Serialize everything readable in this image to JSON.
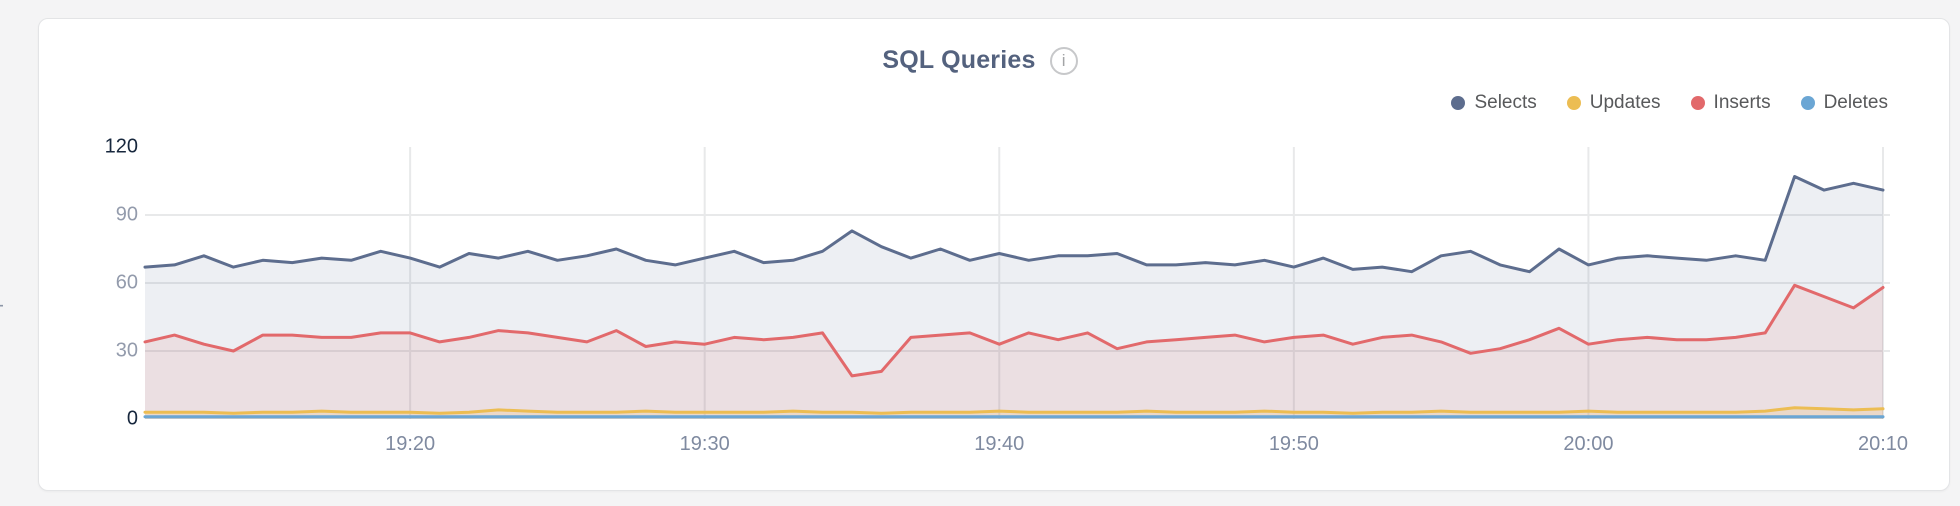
{
  "page": {
    "background": "#f4f4f5"
  },
  "header": {
    "title": "SQL Queries",
    "info_icon_glyph": "i"
  },
  "colors": {
    "card_border": "#e3e4e6",
    "grid": "#e8e9ea",
    "title": "#54627e",
    "legend_text": "#58595b",
    "ytick_strong": "#17273d",
    "ytick_weak": "#939bac",
    "xtick": "#7f8aa0"
  },
  "chart_data": {
    "type": "area",
    "title": "SQL Queries",
    "ylabel": "queries",
    "ylim": [
      0,
      120
    ],
    "grid": true,
    "legend_position": "top-right",
    "yticks": [
      {
        "value": 120,
        "label": "120",
        "strong": true,
        "gridline": false
      },
      {
        "value": 90,
        "label": "90",
        "strong": false,
        "gridline": true
      },
      {
        "value": 60,
        "label": "60",
        "strong": false,
        "gridline": true
      },
      {
        "value": 30,
        "label": "30",
        "strong": false,
        "gridline": true
      },
      {
        "value": 0,
        "label": "0",
        "strong": true,
        "gridline": false
      }
    ],
    "x_minutes_span": 59,
    "xticks": [
      {
        "label": "19:20",
        "minute": 9
      },
      {
        "label": "19:30",
        "minute": 19
      },
      {
        "label": "19:40",
        "minute": 29
      },
      {
        "label": "19:50",
        "minute": 39
      },
      {
        "label": "20:00",
        "minute": 49
      },
      {
        "label": "20:10",
        "minute": 59
      }
    ],
    "series": [
      {
        "name": "Selects",
        "color": "#5d6d8e",
        "fill": "rgba(93,109,142,0.11)",
        "values": [
          67,
          68,
          72,
          67,
          70,
          69,
          71,
          70,
          74,
          71,
          67,
          73,
          71,
          74,
          70,
          72,
          75,
          70,
          68,
          71,
          74,
          69,
          70,
          74,
          83,
          76,
          71,
          75,
          70,
          73,
          70,
          72,
          72,
          73,
          68,
          68,
          69,
          68,
          70,
          67,
          71,
          66,
          67,
          65,
          72,
          74,
          68,
          65,
          75,
          68,
          71,
          72,
          71,
          70,
          72,
          70,
          107,
          101,
          104,
          101
        ]
      },
      {
        "name": "Inserts",
        "color": "#e2696b",
        "fill": "rgba(226,105,107,0.12)",
        "values": [
          34,
          37,
          33,
          30,
          37,
          37,
          36,
          36,
          38,
          38,
          34,
          36,
          39,
          38,
          36,
          34,
          39,
          32,
          34,
          33,
          36,
          35,
          36,
          38,
          19,
          21,
          36,
          37,
          38,
          33,
          38,
          35,
          38,
          31,
          34,
          35,
          36,
          37,
          34,
          36,
          37,
          33,
          36,
          37,
          34,
          29,
          31,
          35,
          40,
          33,
          35,
          36,
          35,
          35,
          36,
          38,
          59,
          54,
          49,
          58
        ]
      },
      {
        "name": "Updates",
        "color": "#ecbd53",
        "fill": "rgba(236,189,83,0.18)",
        "values": [
          3,
          3,
          3,
          2.5,
          3,
          3,
          3.5,
          3,
          3,
          3,
          2.5,
          3,
          4,
          3.5,
          3,
          3,
          3,
          3.5,
          3,
          3,
          3,
          3,
          3.5,
          3,
          3,
          2.5,
          3,
          3,
          3,
          3.5,
          3,
          3,
          3,
          3,
          3.5,
          3,
          3,
          3,
          3.5,
          3,
          3,
          2.5,
          3,
          3,
          3.5,
          3,
          3,
          3,
          3,
          3.5,
          3,
          3,
          3,
          3,
          3,
          3.5,
          5,
          4.5,
          4,
          4.5
        ]
      },
      {
        "name": "Deletes",
        "color": "#6ba6d4",
        "fill": "rgba(107,166,212,0.20)",
        "values": [
          1,
          1,
          1,
          1,
          1,
          1,
          1,
          1,
          1,
          1,
          1,
          1,
          1,
          1,
          1,
          1,
          1,
          1,
          1,
          1,
          1,
          1,
          1,
          1,
          1,
          1,
          1,
          1,
          1,
          1,
          1,
          1,
          1,
          1,
          1,
          1,
          1,
          1,
          1,
          1,
          1,
          1,
          1,
          1,
          1,
          1,
          1,
          1,
          1,
          1,
          1,
          1,
          1,
          1,
          1,
          1,
          1,
          1,
          1,
          1
        ]
      }
    ],
    "legend_order": [
      "Selects",
      "Updates",
      "Inserts",
      "Deletes"
    ]
  }
}
